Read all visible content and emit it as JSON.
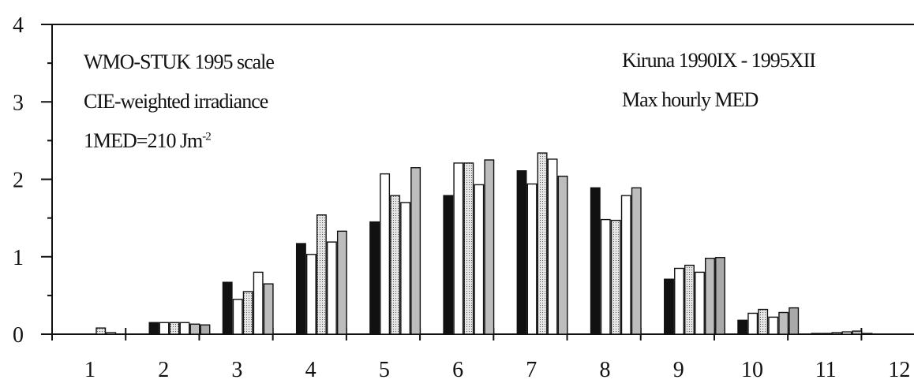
{
  "chart_data": {
    "type": "bar",
    "title": "",
    "xlabel": "",
    "ylabel": "",
    "ylim": [
      0,
      4
    ],
    "yticks": [
      0,
      1,
      2,
      3,
      4
    ],
    "categories": [
      "1",
      "2",
      "3",
      "4",
      "5",
      "6",
      "7",
      "8",
      "9",
      "10",
      "11",
      "12"
    ],
    "grid": false,
    "legend": "none",
    "annotations": {
      "scale": "WMO-STUK 1995 scale",
      "weighting": "CIE-weighted irradiance",
      "med_prefix": "1MED=210 Jm",
      "med_sup": "-2",
      "station": "Kiruna 1990IX - 1995XII",
      "metric": "Max hourly MED"
    },
    "series_colors": [
      "#111111",
      "#ffffff",
      "#d2d2d2",
      "#ffffff",
      "#bdbdbd",
      "#a9a9a9"
    ],
    "series": [
      {
        "values": [
          0.0,
          0.15,
          0.67,
          1.17,
          1.45,
          1.79,
          2.11,
          1.89,
          0.71,
          0.18,
          0.01,
          0.0
        ]
      },
      {
        "values": [
          0.0,
          0.15,
          0.45,
          1.03,
          2.07,
          2.21,
          1.94,
          1.48,
          0.85,
          0.27,
          0.01,
          0.0
        ]
      },
      {
        "values": [
          0.08,
          0.15,
          0.55,
          1.54,
          1.79,
          2.21,
          2.34,
          1.47,
          0.89,
          0.32,
          0.02,
          0.0
        ]
      },
      {
        "values": [
          0.02,
          0.15,
          0.8,
          1.19,
          1.7,
          1.93,
          2.26,
          1.79,
          0.8,
          0.22,
          0.03,
          0.0
        ]
      },
      {
        "values": [
          0.0,
          0.13,
          0.65,
          1.33,
          2.15,
          2.25,
          2.04,
          1.89,
          0.98,
          0.28,
          0.04,
          0.0
        ]
      },
      {
        "values": [
          0.0,
          0.12,
          0.0,
          0.0,
          0.0,
          0.0,
          0.0,
          0.0,
          0.99,
          0.34,
          0.01,
          0.0
        ]
      }
    ]
  }
}
